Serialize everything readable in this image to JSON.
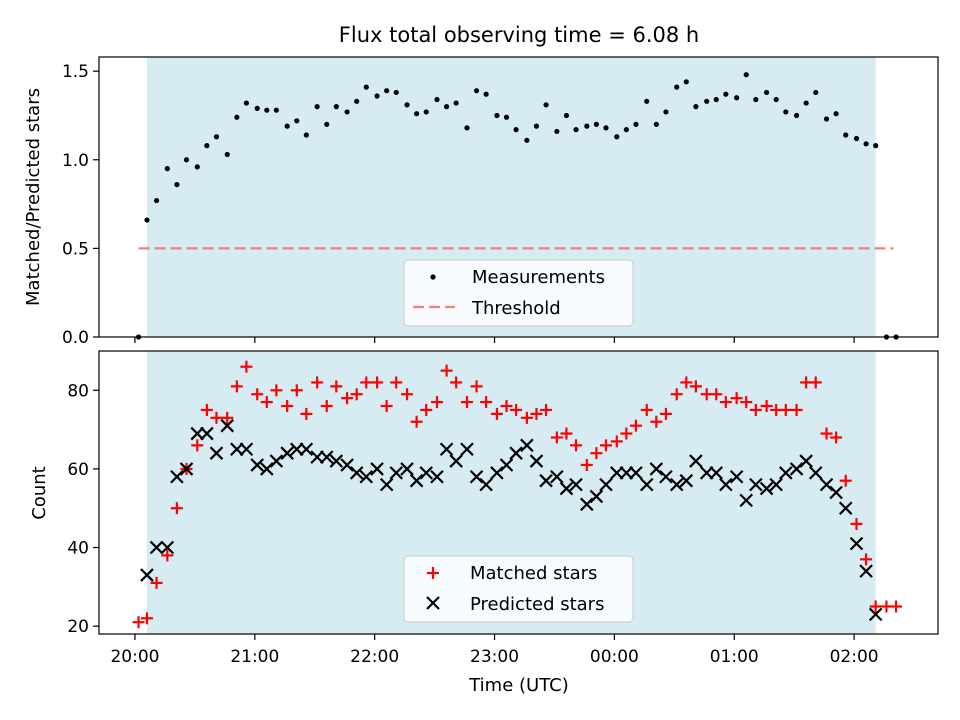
{
  "chart_data": [
    {
      "type": "scatter",
      "title": "Flux total observing time = 6.08 h",
      "ylabel": "Matched/Predicted stars",
      "xlabel": "",
      "ylim": [
        0,
        1.58
      ],
      "y_ticks": [
        "0.0",
        "0.5",
        "1.0",
        "1.5"
      ],
      "y_tick_values": [
        0,
        0.5,
        1.0,
        1.5
      ],
      "shaded_span_hours": [
        0.1,
        6.18
      ],
      "threshold": {
        "name": "Threshold",
        "value": 0.5,
        "color": "#f08080",
        "x_range_hours": [
          0.03,
          6.33
        ]
      },
      "legend": {
        "placement": "lower-center",
        "entries": [
          "Measurements",
          "Threshold"
        ]
      },
      "series": [
        {
          "name": "Measurements",
          "color": "#000000",
          "x_hours": [
            0.03,
            0.1,
            0.18,
            0.27,
            0.35,
            0.43,
            0.52,
            0.6,
            0.68,
            0.77,
            0.85,
            0.93,
            1.02,
            1.1,
            1.18,
            1.27,
            1.35,
            1.43,
            1.52,
            1.6,
            1.68,
            1.77,
            1.85,
            1.93,
            2.02,
            2.1,
            2.18,
            2.27,
            2.35,
            2.43,
            2.52,
            2.6,
            2.68,
            2.77,
            2.85,
            2.93,
            3.02,
            3.1,
            3.18,
            3.27,
            3.35,
            3.43,
            3.52,
            3.6,
            3.68,
            3.77,
            3.85,
            3.93,
            4.02,
            4.1,
            4.18,
            4.27,
            4.35,
            4.43,
            4.52,
            4.6,
            4.68,
            4.77,
            4.85,
            4.93,
            5.02,
            5.1,
            5.18,
            5.27,
            5.35,
            5.43,
            5.52,
            5.6,
            5.68,
            5.77,
            5.85,
            5.93,
            6.02,
            6.1,
            6.18,
            6.27,
            6.35
          ],
          "values": [
            0.0,
            0.66,
            0.77,
            0.95,
            0.86,
            1.0,
            0.96,
            1.08,
            1.13,
            1.03,
            1.24,
            1.32,
            1.29,
            1.28,
            1.28,
            1.19,
            1.22,
            1.14,
            1.3,
            1.2,
            1.3,
            1.27,
            1.33,
            1.41,
            1.36,
            1.39,
            1.38,
            1.31,
            1.26,
            1.27,
            1.34,
            1.3,
            1.32,
            1.18,
            1.39,
            1.37,
            1.25,
            1.24,
            1.17,
            1.11,
            1.19,
            1.31,
            1.16,
            1.25,
            1.17,
            1.19,
            1.2,
            1.18,
            1.13,
            1.17,
            1.2,
            1.33,
            1.2,
            1.27,
            1.41,
            1.44,
            1.3,
            1.33,
            1.34,
            1.37,
            1.35,
            1.48,
            1.34,
            1.38,
            1.34,
            1.27,
            1.25,
            1.32,
            1.38,
            1.23,
            1.26,
            1.14,
            1.12,
            1.09,
            1.08,
            0.0,
            0.0
          ]
        }
      ]
    },
    {
      "type": "scatter",
      "title": "",
      "xlabel": "Time (UTC)",
      "ylabel": "Count",
      "ylim": [
        18,
        90
      ],
      "y_ticks": [
        "20",
        "40",
        "60",
        "80"
      ],
      "y_tick_values": [
        20,
        40,
        60,
        80
      ],
      "x_ticks": [
        "20:00",
        "21:00",
        "22:00",
        "23:00",
        "00:00",
        "01:00",
        "02:00"
      ],
      "x_tick_hours": [
        0,
        1,
        2,
        3,
        4,
        5,
        6
      ],
      "xlim_hours": [
        -0.3,
        6.7
      ],
      "shaded_span_hours": [
        0.1,
        6.18
      ],
      "legend": {
        "placement": "lower-center",
        "entries": [
          "Matched stars",
          "Predicted stars"
        ]
      },
      "series": [
        {
          "name": "Matched stars",
          "marker": "+",
          "color": "#ff0000",
          "x_hours": [
            0.03,
            0.1,
            0.18,
            0.27,
            0.35,
            0.43,
            0.52,
            0.6,
            0.68,
            0.77,
            0.85,
            0.93,
            1.02,
            1.1,
            1.18,
            1.27,
            1.35,
            1.43,
            1.52,
            1.6,
            1.68,
            1.77,
            1.85,
            1.93,
            2.02,
            2.1,
            2.18,
            2.27,
            2.35,
            2.43,
            2.52,
            2.6,
            2.68,
            2.77,
            2.85,
            2.93,
            3.02,
            3.1,
            3.18,
            3.27,
            3.35,
            3.43,
            3.52,
            3.6,
            3.68,
            3.77,
            3.85,
            3.93,
            4.02,
            4.1,
            4.18,
            4.27,
            4.35,
            4.43,
            4.52,
            4.6,
            4.68,
            4.77,
            4.85,
            4.93,
            5.02,
            5.1,
            5.18,
            5.27,
            5.35,
            5.43,
            5.52,
            5.6,
            5.68,
            5.77,
            5.85,
            5.93,
            6.02,
            6.1,
            6.18,
            6.27,
            6.35
          ],
          "values": [
            21,
            22,
            31,
            38,
            50,
            60,
            66,
            75,
            73,
            73,
            81,
            86,
            79,
            77,
            80,
            76,
            80,
            74,
            82,
            76,
            81,
            78,
            79,
            82,
            82,
            76,
            82,
            79,
            72,
            75,
            77,
            85,
            82,
            77,
            81,
            77,
            74,
            76,
            75,
            73,
            74,
            75,
            68,
            69,
            66,
            61,
            64,
            66,
            67,
            69,
            71,
            75,
            72,
            74,
            79,
            82,
            81,
            79,
            79,
            77,
            78,
            77,
            75,
            76,
            75,
            75,
            75,
            82,
            82,
            69,
            68,
            57,
            46,
            37,
            25,
            25,
            25
          ]
        },
        {
          "name": "Predicted stars",
          "marker": "x",
          "color": "#000000",
          "x_hours": [
            0.1,
            0.18,
            0.27,
            0.35,
            0.43,
            0.52,
            0.6,
            0.68,
            0.77,
            0.85,
            0.93,
            1.02,
            1.1,
            1.18,
            1.27,
            1.35,
            1.43,
            1.52,
            1.6,
            1.68,
            1.77,
            1.85,
            1.93,
            2.02,
            2.1,
            2.18,
            2.27,
            2.35,
            2.43,
            2.52,
            2.6,
            2.68,
            2.77,
            2.85,
            2.93,
            3.02,
            3.1,
            3.18,
            3.27,
            3.35,
            3.43,
            3.52,
            3.6,
            3.68,
            3.77,
            3.85,
            3.93,
            4.02,
            4.1,
            4.18,
            4.27,
            4.35,
            4.43,
            4.52,
            4.6,
            4.68,
            4.77,
            4.85,
            4.93,
            5.02,
            5.1,
            5.18,
            5.27,
            5.35,
            5.43,
            5.52,
            5.6,
            5.68,
            5.77,
            5.85,
            5.93,
            6.02,
            6.1,
            6.18
          ],
          "values": [
            33,
            40,
            40,
            58,
            60,
            69,
            69,
            64,
            71,
            65,
            65,
            61,
            60,
            62,
            64,
            65,
            65,
            63,
            63,
            62,
            61,
            59,
            58,
            60,
            56,
            59,
            60,
            57,
            59,
            58,
            65,
            62,
            65,
            58,
            56,
            59,
            61,
            64,
            66,
            62,
            57,
            58,
            55,
            56,
            51,
            53,
            56,
            59,
            59,
            59,
            56,
            60,
            58,
            56,
            57,
            62,
            59,
            59,
            56,
            58,
            52,
            56,
            55,
            56,
            59,
            60,
            62,
            59,
            56,
            54,
            50,
            41,
            34,
            23
          ]
        }
      ]
    }
  ],
  "colors": {
    "shade": "#add8e6",
    "shade_opacity": 0.5,
    "threshold": "#f08080",
    "matched": "#ff0000",
    "predicted": "#000000",
    "measurement": "#000000"
  }
}
